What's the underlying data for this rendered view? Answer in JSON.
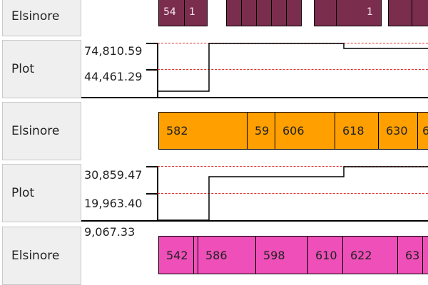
{
  "rows": [
    {
      "label": "Elsinore"
    },
    {
      "label": "Plot"
    },
    {
      "label": "Elsinore"
    },
    {
      "label": "Plot"
    },
    {
      "label": "Elsinore"
    }
  ],
  "plots": [
    {
      "tick_high": "74,810.59",
      "tick_mid": "44,461.29",
      "line_color": "#000000",
      "threshold_color": "#e03030"
    },
    {
      "tick_high": "30,859.47",
      "tick_mid": "19,963.40",
      "tick_low": "9,067.33",
      "line_color": "#000000",
      "threshold_color": "#e03030"
    }
  ],
  "tracks": {
    "top": {
      "color": "#7b2d4e",
      "labels": [
        "54",
        "1",
        "",
        "",
        "",
        "",
        "",
        "",
        "1",
        "",
        ""
      ]
    },
    "middle": {
      "color": "#ff9f00",
      "labels": [
        "582",
        "59",
        "606",
        "618",
        "630",
        "6"
      ]
    },
    "bottom": {
      "color": "#ee4fb8",
      "labels": [
        "542",
        "",
        "586",
        "598",
        "610",
        "622",
        "63",
        ""
      ]
    }
  }
}
